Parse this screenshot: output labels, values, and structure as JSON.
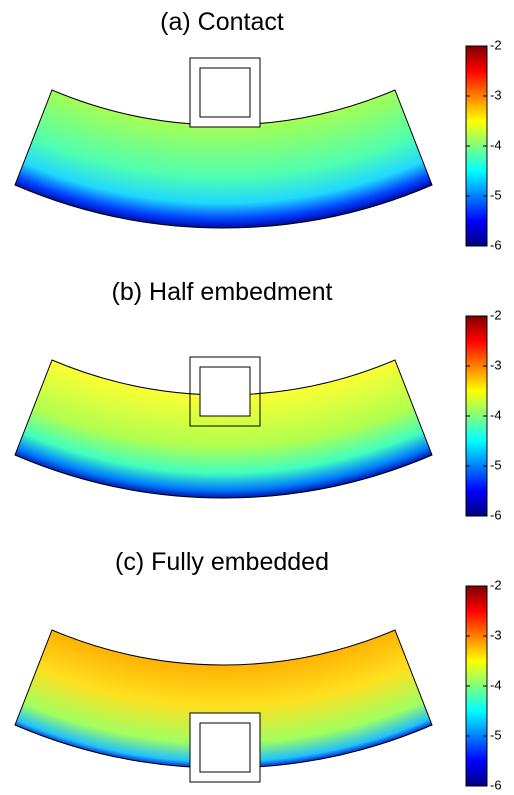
{
  "chart_data": [
    {
      "type": "heatmap",
      "title": "(a) Contact",
      "colormap": "jet",
      "clim": [
        -6,
        -2
      ],
      "yticks": [
        -2,
        -3,
        -4,
        -5,
        -6
      ]
    },
    {
      "type": "heatmap",
      "title": "(b) Half embedment",
      "colormap": "jet",
      "clim": [
        -6,
        -2
      ],
      "yticks": [
        -2,
        -3,
        -4,
        -5,
        -6
      ]
    },
    {
      "type": "heatmap",
      "title": "(c) Fully embedded",
      "colormap": "jet",
      "clim": [
        -6,
        -2
      ],
      "yticks": [
        -2,
        -3,
        -4,
        -5,
        -6
      ]
    }
  ]
}
